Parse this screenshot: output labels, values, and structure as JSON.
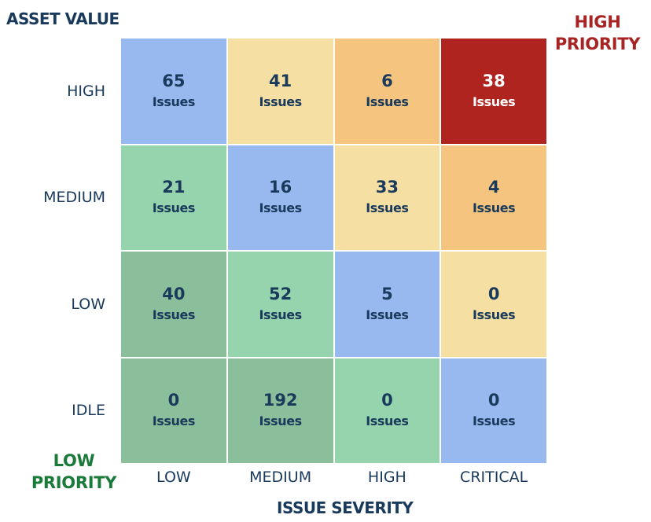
{
  "chart_data": {
    "type": "heatmap",
    "title": "",
    "xlabel": "ISSUE SEVERITY",
    "ylabel": "ASSET VALUE",
    "x_categories": [
      "LOW",
      "MEDIUM",
      "HIGH",
      "CRITICAL"
    ],
    "y_categories": [
      "HIGH",
      "MEDIUM",
      "LOW",
      "IDLE"
    ],
    "value_label": "Issues",
    "values": [
      [
        65,
        41,
        6,
        38
      ],
      [
        21,
        16,
        33,
        4
      ],
      [
        40,
        52,
        5,
        0
      ],
      [
        0,
        192,
        0,
        0
      ]
    ],
    "cell_colors": [
      [
        "blue",
        "yellow",
        "orange",
        "red"
      ],
      [
        "green",
        "blue",
        "yellow",
        "orange"
      ],
      [
        "darkgreen",
        "green",
        "blue",
        "yellow"
      ],
      [
        "darkgreen",
        "darkgreen",
        "green",
        "blue"
      ]
    ],
    "palette": {
      "blue": "#98b9f0",
      "yellow": "#f5dfa2",
      "orange": "#f5c57f",
      "red": "#b0241f",
      "green": "#95d4ad",
      "darkgreen": "#8bbf9b"
    },
    "annotations": {
      "high_priority": [
        "HIGH",
        "PRIORITY"
      ],
      "low_priority": [
        "LOW",
        "PRIORITY"
      ]
    },
    "annotation_colors": {
      "high": "#a82424",
      "low": "#1a7a3a"
    }
  }
}
